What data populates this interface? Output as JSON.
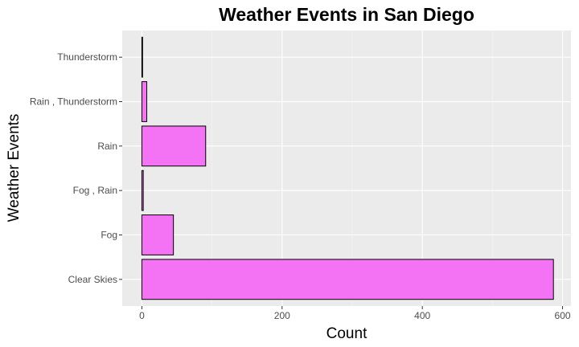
{
  "chart_data": {
    "type": "bar",
    "orientation": "horizontal",
    "title": "Weather Events in San Diego",
    "xlabel": "Count",
    "ylabel": "Weather Events",
    "categories": [
      "Clear Skies",
      "Fog",
      "Fog , Rain",
      "Rain",
      "Rain , Thunderstorm",
      "Thunderstorm"
    ],
    "values": [
      587,
      45,
      2,
      91,
      7,
      1
    ],
    "xlim": [
      -28,
      612
    ],
    "x_ticks": [
      0,
      200,
      400,
      600
    ],
    "x_tick_labels": [
      "0",
      "200",
      "400",
      "600"
    ],
    "grid": true,
    "colors": {
      "bar_fill": "#f472f4",
      "bar_stroke": "#000000",
      "panel_background": "#ebebeb",
      "grid_major": "#ffffff",
      "grid_minor": "#f5f5f5"
    }
  }
}
